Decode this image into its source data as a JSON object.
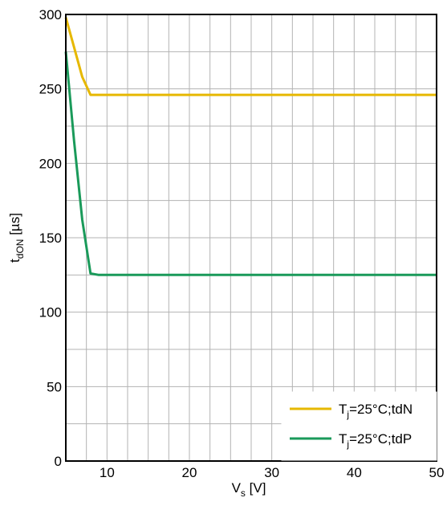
{
  "chart_data": {
    "type": "line",
    "xlabel": {
      "main": "V",
      "sub": "s",
      "unit": " [V]"
    },
    "ylabel": {
      "main": "t",
      "sub": "dON",
      "unit": " [µs]"
    },
    "xlim": [
      5,
      50
    ],
    "ylim": [
      0,
      300
    ],
    "x_ticks": [
      10,
      20,
      30,
      40,
      50
    ],
    "y_ticks": [
      0,
      50,
      100,
      150,
      200,
      250,
      300
    ],
    "x_grid_step": 2.5,
    "y_grid_step": 25,
    "grid": true,
    "legend_position": "bottom-right",
    "series": [
      {
        "name": "T_j=25°C;tdN",
        "name_parts": {
          "main": "T",
          "sub": "j",
          "rest": "=25°C;tdN"
        },
        "color": "#e6b800",
        "x": [
          5,
          6,
          7,
          8,
          9,
          50
        ],
        "y": [
          298,
          278,
          258,
          246,
          246,
          246
        ]
      },
      {
        "name": "T_j=25°C;tdP",
        "name_parts": {
          "main": "T",
          "sub": "j",
          "rest": "=25°C;tdP"
        },
        "color": "#1a9a5a",
        "x": [
          5,
          6,
          7,
          8,
          9,
          50
        ],
        "y": [
          275,
          215,
          162,
          126,
          125,
          125
        ]
      }
    ]
  }
}
